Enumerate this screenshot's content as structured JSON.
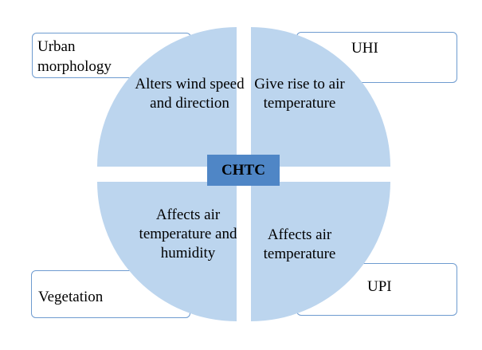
{
  "diagram": {
    "center_label": "CHTC",
    "colors": {
      "quadrant_fill": "#bcd5ee",
      "box_border": "#6e9bd0",
      "center_fill": "#4f86c6"
    },
    "quadrants": [
      {
        "position": "top-left",
        "text": "Alters wind speed and direction"
      },
      {
        "position": "top-right",
        "text": "Give rise to air temperature"
      },
      {
        "position": "bottom-left",
        "text": "Affects air temperature and humidity"
      },
      {
        "position": "bottom-right",
        "text": "Affects air temperature"
      }
    ],
    "factors": [
      {
        "position": "top-left",
        "label": "Urban morphology"
      },
      {
        "position": "top-right",
        "label": "UHI"
      },
      {
        "position": "bottom-left",
        "label": "Vegetation"
      },
      {
        "position": "bottom-right",
        "label": "UPI"
      }
    ]
  }
}
